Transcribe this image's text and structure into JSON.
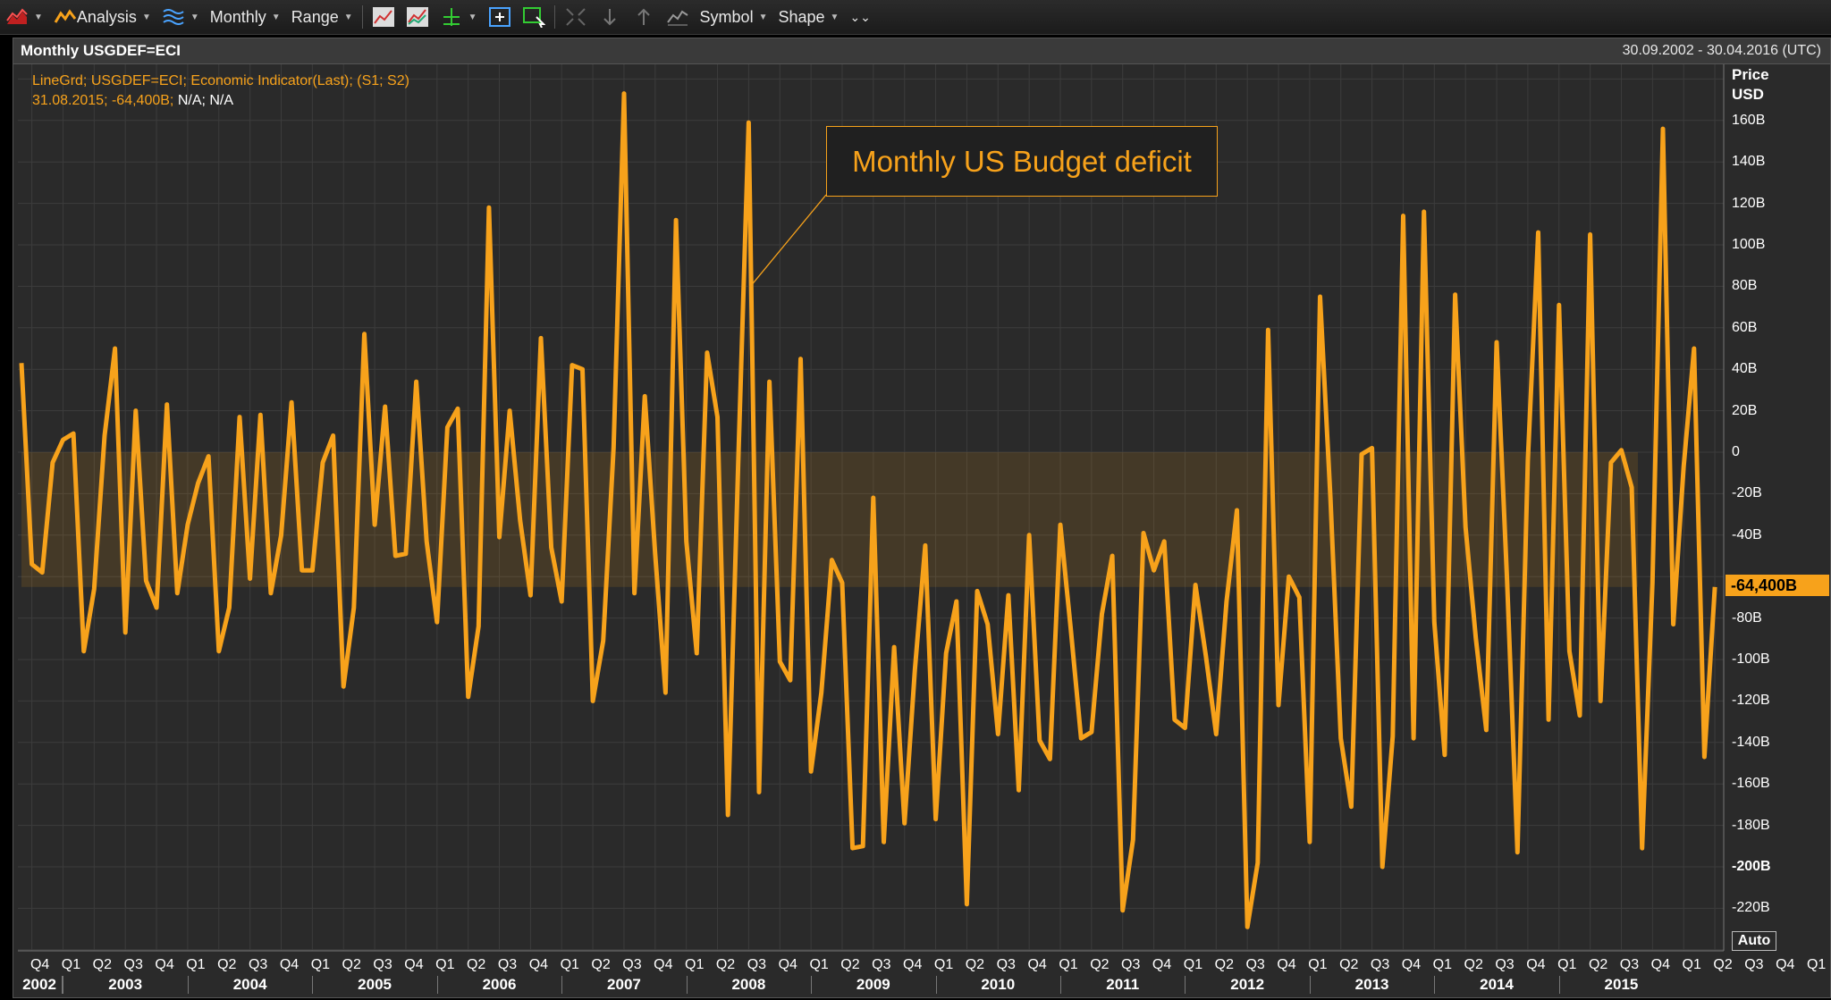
{
  "toolbar": {
    "analysis_label": "Analysis",
    "interval_label": "Monthly",
    "range_label": "Range",
    "symbol_label": "Symbol",
    "shape_label": "Shape"
  },
  "panel": {
    "title": "Monthly USGDEF=ECI",
    "date_range": "30.09.2002 - 30.04.2016 (UTC)"
  },
  "legend": {
    "line1": "LineGrd; USGDEF=ECI; Economic Indicator(Last); (S1; S2)",
    "line2_values": "31.08.2015; -64,400B;",
    "line2_na": "N/A; N/A"
  },
  "annotation": "Monthly US Budget deficit",
  "last_value_tag": "-64,400B",
  "auto_label": "Auto",
  "colors": {
    "series": "#f7a21b",
    "background": "#2a2a2a",
    "grid": "#3c3c3c"
  },
  "chart_data": {
    "type": "line",
    "title": "Monthly USGDEF=ECI",
    "ylabel": "Price USD",
    "ylim": [
      -240,
      180
    ],
    "yticks": [
      "160B",
      "140B",
      "120B",
      "100B",
      "80B",
      "60B",
      "40B",
      "20B",
      "0",
      "-20B",
      "-40B",
      "-80B",
      "-100B",
      "-120B",
      "-140B",
      "-160B",
      "-180B",
      "-200B",
      "-220B"
    ],
    "ytick_values": [
      160,
      140,
      120,
      100,
      80,
      60,
      40,
      20,
      0,
      -20,
      -40,
      -80,
      -100,
      -120,
      -140,
      -160,
      -180,
      -200,
      -220
    ],
    "x_start": "2002-09",
    "xticks_quarters": [
      "Q4",
      "Q1",
      "Q2",
      "Q3",
      "Q4",
      "Q1",
      "Q2",
      "Q3",
      "Q4",
      "Q1",
      "Q2",
      "Q3",
      "Q4",
      "Q1",
      "Q2",
      "Q3",
      "Q4",
      "Q1",
      "Q2",
      "Q3",
      "Q4",
      "Q1",
      "Q2",
      "Q3",
      "Q4",
      "Q1",
      "Q2",
      "Q3",
      "Q4",
      "Q1",
      "Q2",
      "Q3",
      "Q4",
      "Q1",
      "Q2",
      "Q3",
      "Q4",
      "Q1",
      "Q2",
      "Q3",
      "Q4",
      "Q1",
      "Q2",
      "Q3",
      "Q4",
      "Q1",
      "Q2",
      "Q3",
      "Q4",
      "Q1",
      "Q2",
      "Q3",
      "Q4",
      "Q1",
      "Q2",
      "Q3",
      "Q4",
      "Q1",
      "Q2"
    ],
    "xticks_years": [
      "2002",
      "2003",
      "2004",
      "2005",
      "2006",
      "2007",
      "2008",
      "2009",
      "2010",
      "2011",
      "2012",
      "2013",
      "2014",
      "2015"
    ],
    "series": [
      {
        "values": [
          43,
          -54,
          -58,
          -5,
          6,
          9,
          -96,
          -66,
          8,
          50,
          -87,
          20,
          -62,
          -75,
          23,
          -68,
          -35,
          -15,
          -2,
          -96,
          -75,
          17,
          -61,
          18,
          -68,
          -40,
          24,
          -57,
          -57,
          -5,
          8,
          -113,
          -75,
          57,
          -35,
          22,
          -50,
          -49,
          34,
          -43,
          -82,
          12,
          21,
          -118,
          -84,
          118,
          -41,
          20,
          -33,
          -69,
          55,
          -46,
          -72,
          42,
          40,
          -120,
          -91,
          2,
          173,
          -68,
          27,
          -49,
          -116,
          112,
          -43,
          -97,
          48,
          17,
          -175,
          -4,
          159,
          -164,
          34,
          -101,
          -110,
          45,
          -154,
          -116,
          -52,
          -63,
          -191,
          -190,
          -22,
          -188,
          -94,
          -179,
          -105,
          -45,
          -177,
          -97,
          -72,
          -218,
          -67,
          -83,
          -136,
          -69,
          -163,
          -40,
          -139,
          -148,
          -35,
          -85,
          -138,
          -135,
          -78,
          -50,
          -221,
          -187,
          -39,
          -57,
          -43,
          -129,
          -133,
          -64,
          -98,
          -136,
          -72,
          -28,
          -229,
          -198,
          59,
          -122,
          -60,
          -70,
          -188,
          75,
          -22,
          -138,
          -171,
          -1,
          2,
          -200,
          -137,
          114,
          -138,
          116,
          -82,
          -146,
          76,
          -36,
          -90,
          -134,
          53,
          -62,
          -193,
          -4,
          106,
          -129,
          71,
          -96,
          -127,
          105,
          -120,
          -5,
          1,
          -17,
          -191,
          -63,
          156,
          -83,
          -7,
          50,
          -147,
          -65
        ]
      }
    ]
  }
}
